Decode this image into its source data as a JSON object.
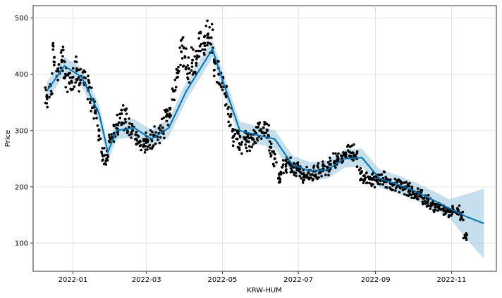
{
  "chart_data": {
    "type": "scatter",
    "xlabel": "KRW-HUM",
    "ylabel": "Price",
    "x_ticks": [
      "2022-01",
      "2022-03",
      "2022-05",
      "2022-07",
      "2022-09",
      "2022-11"
    ],
    "y_ticks": [
      100,
      200,
      300,
      400,
      500
    ],
    "ylim": [
      50,
      522
    ],
    "xlim": [
      "2021-11-30",
      "2022-12-07"
    ],
    "grid": true,
    "colors": {
      "observed": "#000000",
      "forecast": "#0072b2",
      "interval": "#a6cee3"
    },
    "series": [
      {
        "kind": "observed",
        "x": [
          "2021-12-11",
          "2021-12-14",
          "2021-12-17",
          "2021-12-20",
          "2021-12-23",
          "2021-12-26",
          "2021-12-29",
          "2022-01-01",
          "2022-01-04",
          "2022-01-07",
          "2022-01-10",
          "2022-01-13",
          "2022-01-16",
          "2022-01-19",
          "2022-01-22",
          "2022-01-25",
          "2022-01-28",
          "2022-01-31",
          "2022-02-03",
          "2022-02-06",
          "2022-02-09",
          "2022-02-12",
          "2022-02-15",
          "2022-02-18",
          "2022-02-21",
          "2022-02-24",
          "2022-02-27",
          "2022-03-02",
          "2022-03-05",
          "2022-03-08",
          "2022-03-11",
          "2022-03-14",
          "2022-03-17",
          "2022-03-20",
          "2022-03-23",
          "2022-03-26",
          "2022-03-29",
          "2022-04-01",
          "2022-04-04",
          "2022-04-07",
          "2022-04-10",
          "2022-04-13",
          "2022-04-16",
          "2022-04-19",
          "2022-04-22",
          "2022-04-25",
          "2022-04-28",
          "2022-05-01",
          "2022-05-04",
          "2022-05-07",
          "2022-05-10",
          "2022-05-13",
          "2022-05-16",
          "2022-05-19",
          "2022-05-22",
          "2022-05-25",
          "2022-05-28",
          "2022-05-31",
          "2022-06-03",
          "2022-06-06",
          "2022-06-09",
          "2022-06-12",
          "2022-06-15",
          "2022-06-18",
          "2022-06-21",
          "2022-06-24",
          "2022-06-27",
          "2022-06-30",
          "2022-07-03",
          "2022-07-06",
          "2022-07-09",
          "2022-07-12",
          "2022-07-15",
          "2022-07-18",
          "2022-07-21",
          "2022-07-24",
          "2022-07-27",
          "2022-07-30",
          "2022-08-02",
          "2022-08-05",
          "2022-08-08",
          "2022-08-11",
          "2022-08-14",
          "2022-08-17",
          "2022-08-20",
          "2022-08-23",
          "2022-08-26",
          "2022-08-29",
          "2022-09-01",
          "2022-09-04",
          "2022-09-07",
          "2022-09-10",
          "2022-09-13",
          "2022-09-16",
          "2022-09-19",
          "2022-09-22",
          "2022-09-25",
          "2022-09-28",
          "2022-10-01",
          "2022-10-04",
          "2022-10-07",
          "2022-10-10",
          "2022-10-13",
          "2022-10-16",
          "2022-10-19",
          "2022-10-22",
          "2022-10-25",
          "2022-10-28",
          "2022-10-31",
          "2022-11-03",
          "2022-11-06",
          "2022-11-09",
          "2022-11-12"
        ],
        "y": [
          360,
          380,
          430,
          410,
          425,
          400,
          385,
          395,
          410,
          390,
          385,
          375,
          355,
          335,
          300,
          255,
          250,
          285,
          295,
          310,
          330,
          320,
          305,
          300,
          285,
          280,
          275,
          280,
          285,
          290,
          295,
          305,
          325,
          340,
          370,
          395,
          440,
          430,
          410,
          425,
          420,
          450,
          455,
          470,
          465,
          420,
          400,
          385,
          360,
          325,
          290,
          285,
          275,
          285,
          280,
          285,
          295,
          300,
          305,
          300,
          270,
          250,
          215,
          235,
          240,
          240,
          235,
          230,
          225,
          220,
          225,
          222,
          228,
          230,
          232,
          235,
          240,
          245,
          250,
          255,
          258,
          262,
          260,
          250,
          225,
          220,
          218,
          213,
          212,
          214,
          215,
          210,
          206,
          205,
          202,
          200,
          197,
          195,
          190,
          188,
          185,
          180,
          175,
          170,
          165,
          162,
          160,
          158,
          156,
          158,
          160,
          150,
          112
        ]
      },
      {
        "kind": "forecast",
        "x": [
          "2021-12-11",
          "2021-12-25",
          "2022-01-08",
          "2022-01-22",
          "2022-01-29",
          "2022-02-05",
          "2022-02-19",
          "2022-03-05",
          "2022-03-19",
          "2022-04-02",
          "2022-04-16",
          "2022-04-23",
          "2022-05-01",
          "2022-05-15",
          "2022-05-29",
          "2022-06-12",
          "2022-06-26",
          "2022-07-10",
          "2022-07-24",
          "2022-08-07",
          "2022-08-21",
          "2022-09-04",
          "2022-09-18",
          "2022-10-02",
          "2022-10-16",
          "2022-10-30",
          "2022-11-13",
          "2022-11-27"
        ],
        "y": [
          370,
          415,
          395,
          330,
          262,
          300,
          305,
          285,
          305,
          370,
          420,
          445,
          390,
          300,
          292,
          285,
          240,
          228,
          230,
          250,
          252,
          215,
          205,
          193,
          178,
          162,
          147,
          135
        ]
      }
    ]
  }
}
